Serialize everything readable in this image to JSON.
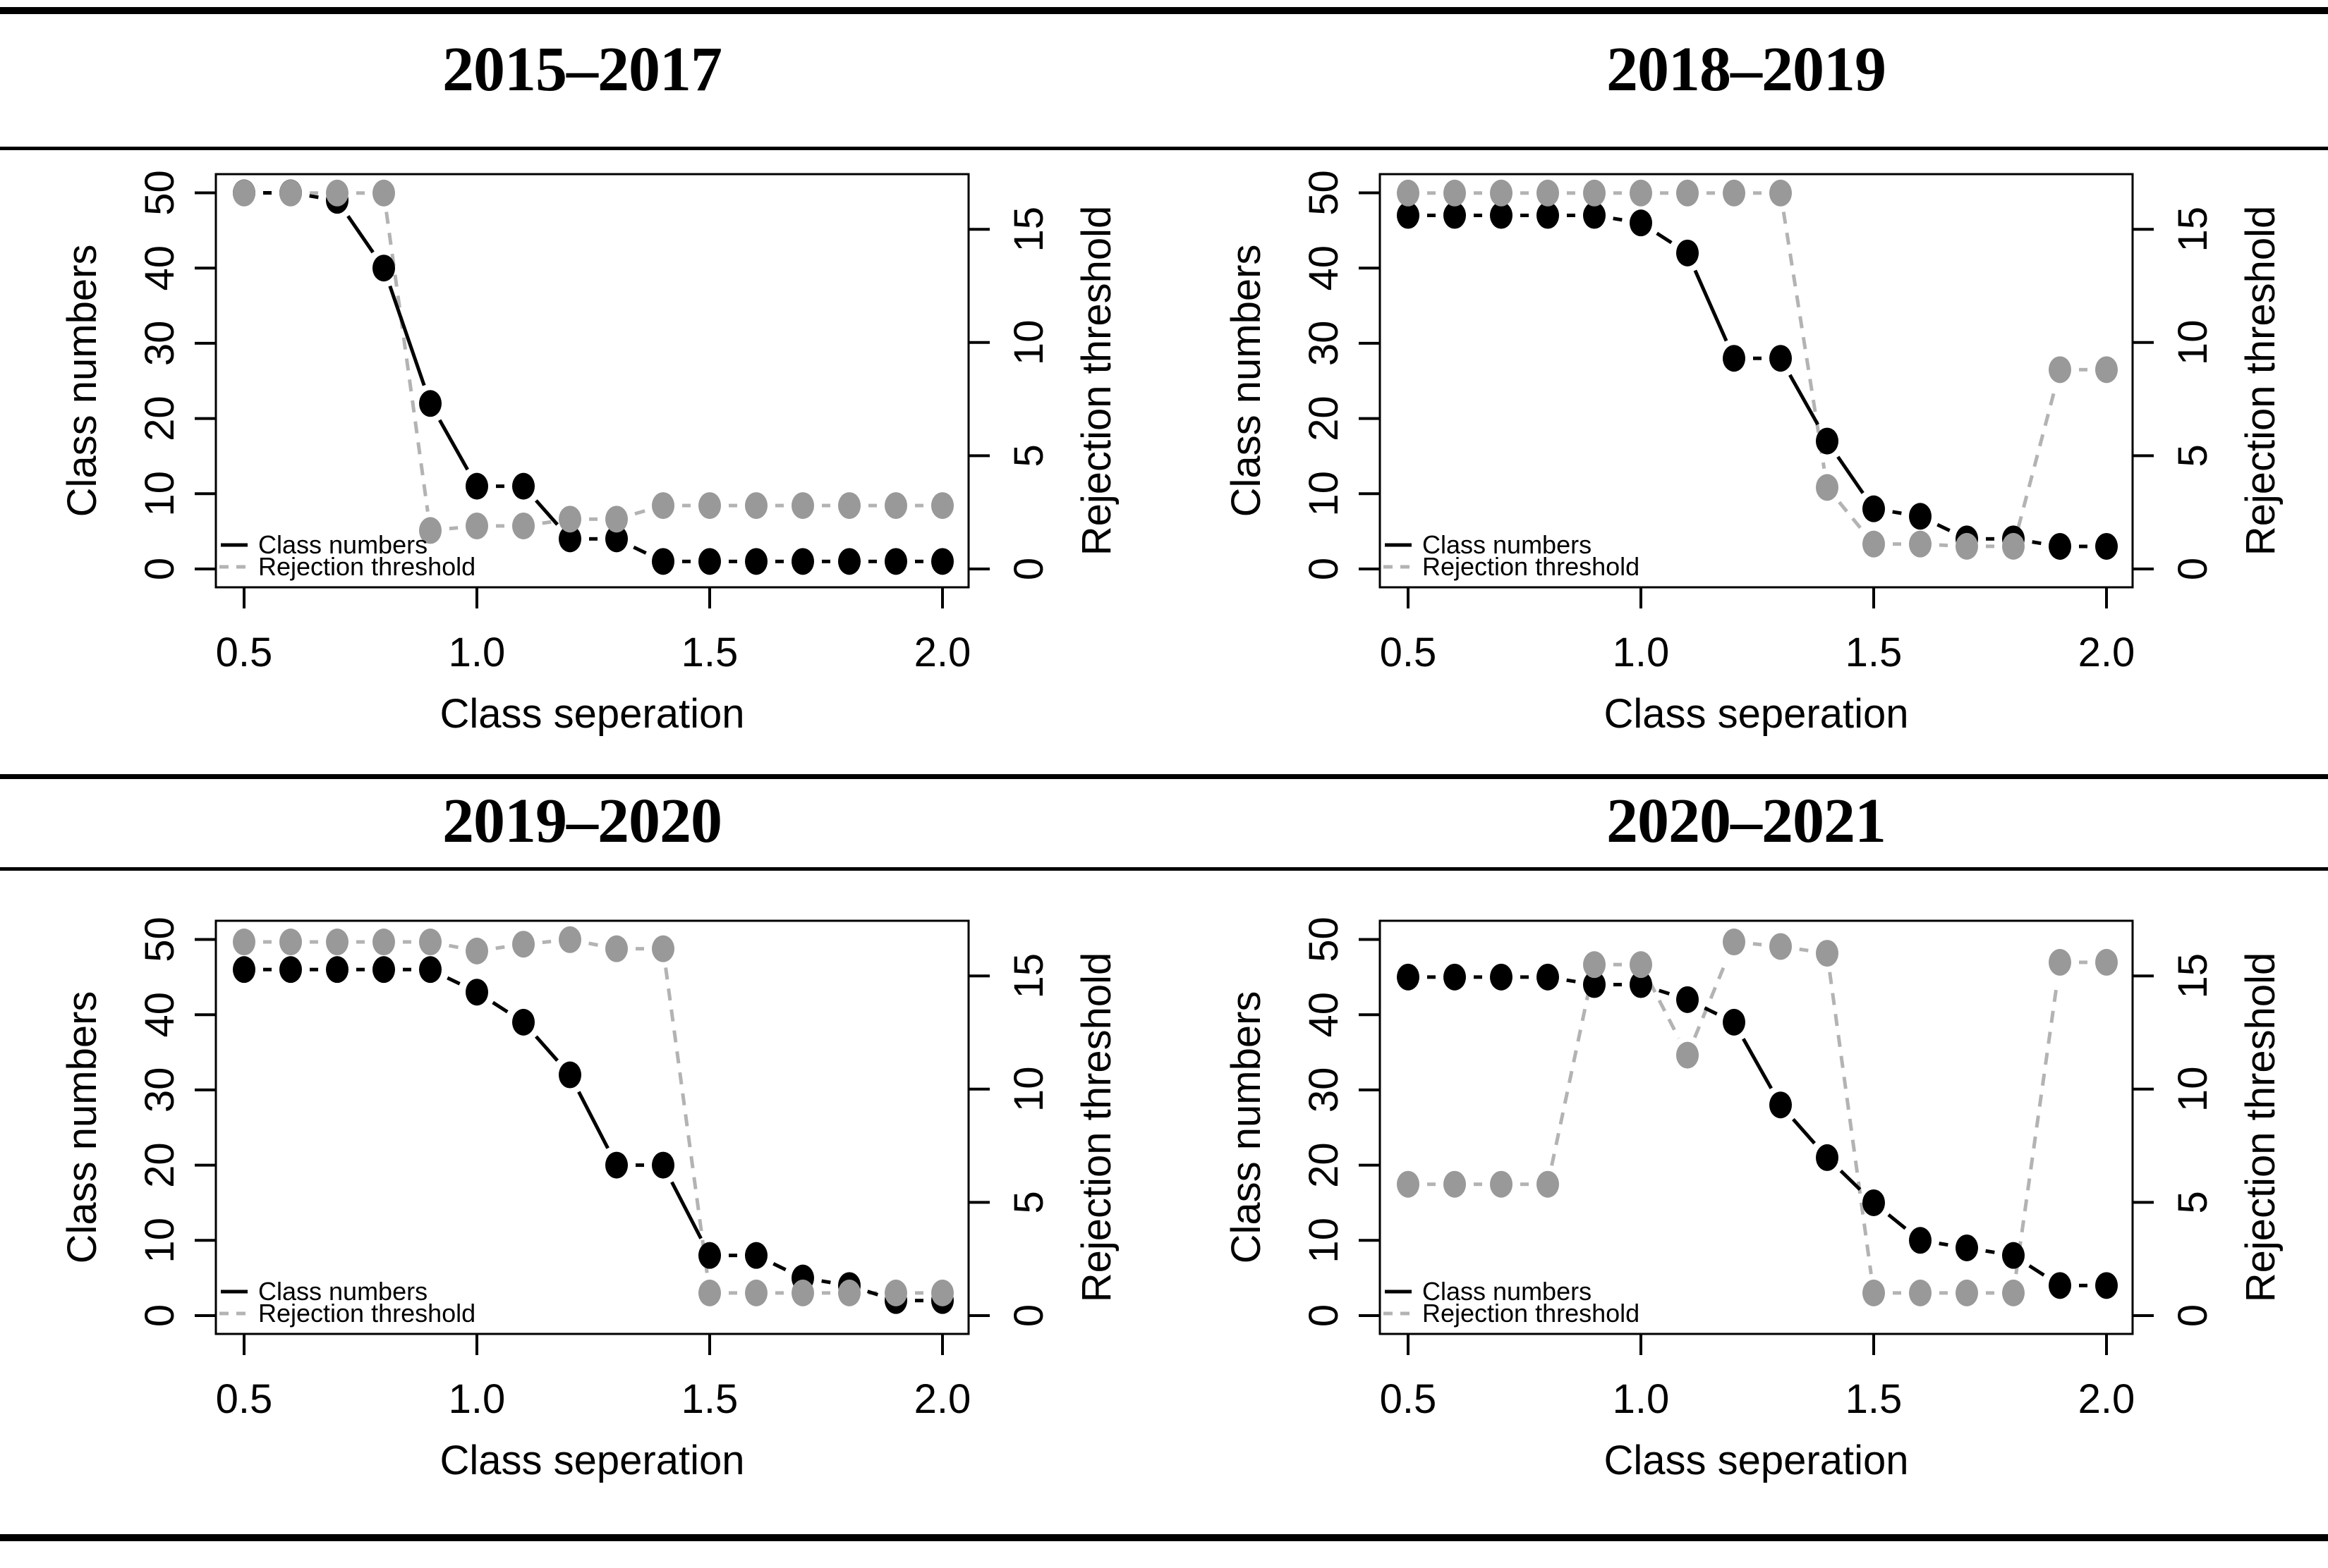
{
  "figure": {
    "background": "#ffffff",
    "rule_color": "#000000"
  },
  "colors": {
    "class_series": "#000000",
    "threshold_point": "#999999",
    "threshold_line": "#b3b3b3",
    "frame": "#000000"
  },
  "chart_data": [
    {
      "type": "line",
      "title": "2015–2017",
      "xlabel": "Class seperation",
      "ylabel_left": "Class numbers",
      "ylabel_right": "Rejection threshold",
      "x_ticks": [
        0.5,
        1.0,
        1.5,
        2.0
      ],
      "y_left_ticks": [
        0,
        10,
        20,
        30,
        40,
        50
      ],
      "y_right_ticks": [
        0,
        5,
        10,
        15
      ],
      "y_left_range": [
        0,
        50
      ],
      "y_right_range": [
        0,
        16.6
      ],
      "legend": [
        "Class numbers",
        "Rejection threshold"
      ],
      "legend_position": "bottom-left",
      "x": [
        0.5,
        0.6,
        0.7,
        0.8,
        0.9,
        1.0,
        1.1,
        1.2,
        1.3,
        1.4,
        1.5,
        1.6,
        1.7,
        1.8,
        1.9,
        2.0
      ],
      "series": [
        {
          "name": "Class numbers",
          "axis": "left",
          "style": "solid-points",
          "values": [
            50,
            50,
            49,
            40,
            22,
            11,
            11,
            4,
            4,
            1,
            1,
            1,
            1,
            1,
            1,
            1
          ]
        },
        {
          "name": "Rejection threshold",
          "axis": "right",
          "style": "dashed-points",
          "values": [
            16.6,
            16.6,
            16.6,
            16.6,
            1.7,
            1.9,
            1.9,
            2.2,
            2.2,
            2.8,
            2.8,
            2.8,
            2.8,
            2.8,
            2.8,
            2.8
          ]
        }
      ]
    },
    {
      "type": "line",
      "title": "2018–2019",
      "xlabel": "Class seperation",
      "ylabel_left": "Class numbers",
      "ylabel_right": "Rejection threshold",
      "x_ticks": [
        0.5,
        1.0,
        1.5,
        2.0
      ],
      "y_left_ticks": [
        0,
        10,
        20,
        30,
        40,
        50
      ],
      "y_right_ticks": [
        0,
        5,
        10,
        15
      ],
      "y_left_range": [
        0,
        50
      ],
      "y_right_range": [
        0,
        16.6
      ],
      "legend": [
        "Class numbers",
        "Rejection threshold"
      ],
      "legend_position": "bottom-left",
      "x": [
        0.5,
        0.6,
        0.7,
        0.8,
        0.9,
        1.0,
        1.1,
        1.2,
        1.3,
        1.4,
        1.5,
        1.6,
        1.7,
        1.8,
        1.9,
        2.0
      ],
      "series": [
        {
          "name": "Class numbers",
          "axis": "left",
          "style": "solid-points",
          "values": [
            47,
            47,
            47,
            47,
            47,
            46,
            42,
            28,
            28,
            17,
            8,
            7,
            4,
            4,
            3,
            3
          ]
        },
        {
          "name": "Rejection threshold",
          "axis": "right",
          "style": "dashed-points",
          "values": [
            16.6,
            16.6,
            16.6,
            16.6,
            16.6,
            16.6,
            16.6,
            16.6,
            16.6,
            3.6,
            1.1,
            1.1,
            1.0,
            1.0,
            8.8,
            8.8
          ]
        }
      ]
    },
    {
      "type": "line",
      "title": "2019–2020",
      "xlabel": "Class seperation",
      "ylabel_left": "Class numbers",
      "ylabel_right": "Rejection threshold",
      "x_ticks": [
        0.5,
        1.0,
        1.5,
        2.0
      ],
      "y_left_ticks": [
        0,
        10,
        20,
        30,
        40,
        50
      ],
      "y_right_ticks": [
        0,
        5,
        10,
        15
      ],
      "y_left_range": [
        0,
        50
      ],
      "y_right_range": [
        0,
        16.6
      ],
      "legend": [
        "Class numbers",
        "Rejection threshold"
      ],
      "legend_position": "bottom-left",
      "x": [
        0.5,
        0.6,
        0.7,
        0.8,
        0.9,
        1.0,
        1.1,
        1.2,
        1.3,
        1.4,
        1.5,
        1.6,
        1.7,
        1.8,
        1.9,
        2.0
      ],
      "series": [
        {
          "name": "Class numbers",
          "axis": "left",
          "style": "solid-points",
          "values": [
            46,
            46,
            46,
            46,
            46,
            43,
            39,
            32,
            20,
            20,
            8,
            8,
            5,
            4,
            2,
            2
          ]
        },
        {
          "name": "Rejection threshold",
          "axis": "right",
          "style": "dashed-points",
          "values": [
            16.5,
            16.5,
            16.5,
            16.5,
            16.5,
            16.1,
            16.4,
            16.6,
            16.2,
            16.2,
            1.0,
            1.0,
            1.0,
            1.0,
            1.0,
            1.0
          ]
        }
      ]
    },
    {
      "type": "line",
      "title": "2020–2021",
      "xlabel": "Class seperation",
      "ylabel_left": "Class numbers",
      "ylabel_right": "Rejection threshold",
      "x_ticks": [
        0.5,
        1.0,
        1.5,
        2.0
      ],
      "y_left_ticks": [
        0,
        10,
        20,
        30,
        40,
        50
      ],
      "y_right_ticks": [
        0,
        5,
        10,
        15
      ],
      "y_left_range": [
        0,
        50
      ],
      "y_right_range": [
        0,
        16.6
      ],
      "legend": [
        "Class numbers",
        "Rejection threshold"
      ],
      "legend_position": "bottom-left",
      "x": [
        0.5,
        0.6,
        0.7,
        0.8,
        0.9,
        1.0,
        1.1,
        1.2,
        1.3,
        1.4,
        1.5,
        1.6,
        1.7,
        1.8,
        1.9,
        2.0
      ],
      "series": [
        {
          "name": "Class numbers",
          "axis": "left",
          "style": "solid-points",
          "values": [
            45,
            45,
            45,
            45,
            44,
            44,
            42,
            39,
            28,
            21,
            15,
            10,
            9,
            8,
            4,
            4
          ]
        },
        {
          "name": "Rejection threshold",
          "axis": "right",
          "style": "dashed-points",
          "values": [
            5.8,
            5.8,
            5.8,
            5.8,
            15.5,
            15.5,
            11.5,
            16.5,
            16.3,
            16.0,
            1.0,
            1.0,
            1.0,
            1.0,
            15.6,
            15.6
          ]
        }
      ]
    }
  ]
}
